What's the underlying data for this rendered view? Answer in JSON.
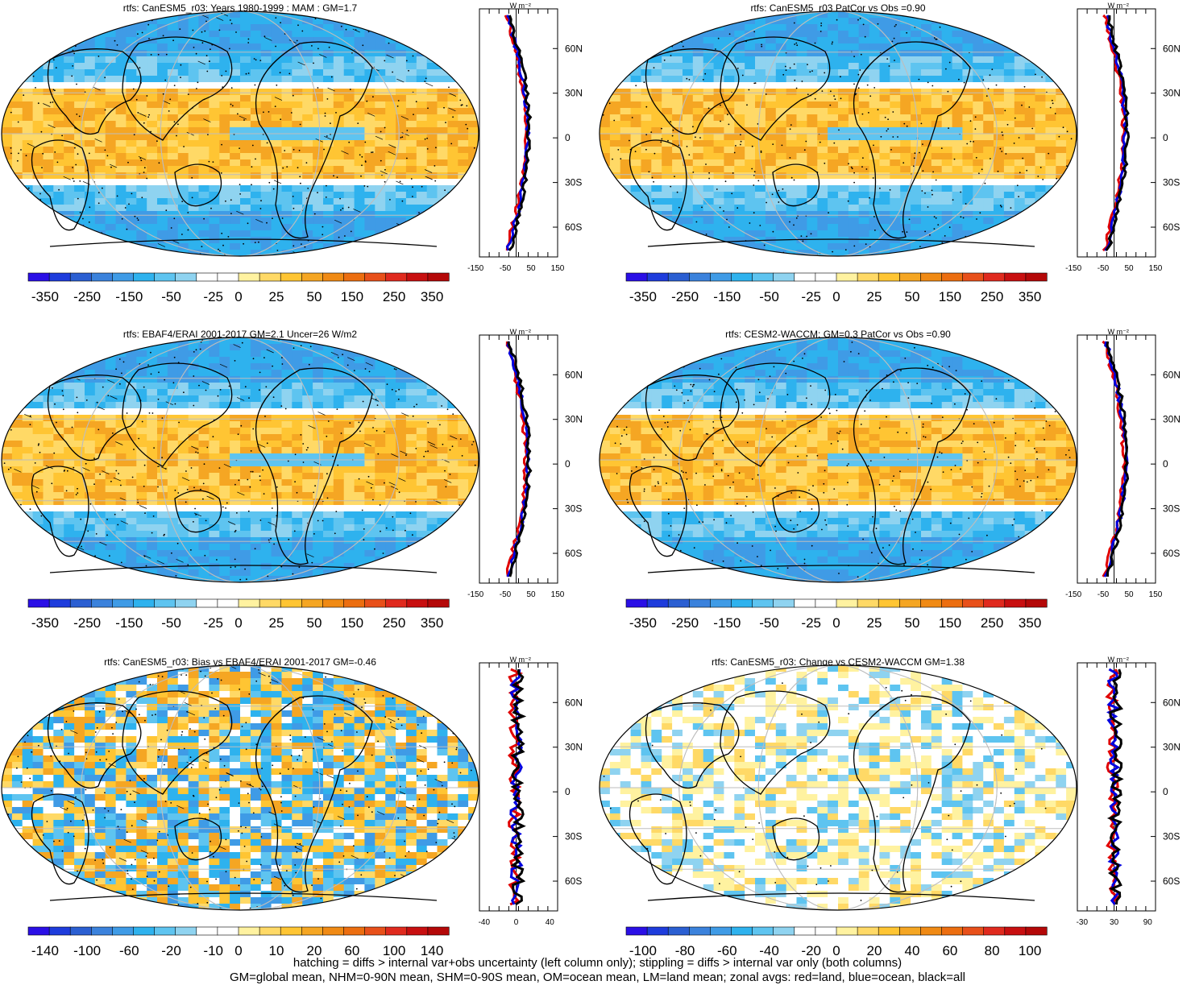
{
  "panels": [
    {
      "id": "p1",
      "title": "rtfs: CanESM5_r03: Years 1980-1999 : MAM : GM=1.7",
      "scale_labels": [
        "-350",
        "-250",
        "-150",
        "-50",
        "-25",
        "0",
        "25",
        "50",
        "150",
        "250",
        "350"
      ],
      "profile_ticks": [
        "-150",
        "-50",
        "50",
        "150"
      ],
      "lat_labels": [
        "60N",
        "30N",
        "0",
        "30S",
        "60S"
      ],
      "units": "W m⁻²",
      "pattern": "sym",
      "hatch": true
    },
    {
      "id": "p2",
      "title": "rtfs: CanESM5_r03 PatCor vs Obs =0.90",
      "scale_labels": [
        "-350",
        "-250",
        "-150",
        "-50",
        "-25",
        "0",
        "25",
        "50",
        "150",
        "250",
        "350"
      ],
      "profile_ticks": [
        "-150",
        "-50",
        "50",
        "150"
      ],
      "lat_labels": [
        "60N",
        "30N",
        "0",
        "30S",
        "60S"
      ],
      "units": "W m⁻²",
      "pattern": "sym",
      "hatch": false
    },
    {
      "id": "p3",
      "title": "rtfs: EBAF4/ERAI 2001-2017 GM=2.1 Uncer=26 W/m2",
      "scale_labels": [
        "-350",
        "-250",
        "-150",
        "-50",
        "-25",
        "0",
        "25",
        "50",
        "150",
        "250",
        "350"
      ],
      "profile_ticks": [
        "-150",
        "-50",
        "50",
        "150"
      ],
      "lat_labels": [
        "60N",
        "30N",
        "0",
        "30S",
        "60S"
      ],
      "units": "W m⁻²",
      "pattern": "sym",
      "hatch": true
    },
    {
      "id": "p4",
      "title": "rtfs: CESM2-WACCM: GM=0.3 PatCor vs Obs =0.90",
      "scale_labels": [
        "-350",
        "-250",
        "-150",
        "-50",
        "-25",
        "0",
        "25",
        "50",
        "150",
        "250",
        "350"
      ],
      "profile_ticks": [
        "-150",
        "-50",
        "50",
        "150"
      ],
      "lat_labels": [
        "60N",
        "30N",
        "0",
        "30S",
        "60S"
      ],
      "units": "W m⁻²",
      "pattern": "sym",
      "hatch": false
    },
    {
      "id": "p5",
      "title": "rtfs: CanESM5_r03: Bias vs EBAF4/ERAI 2001-2017 GM=-0.46",
      "scale_labels": [
        "-140",
        "-100",
        "-60",
        "-20",
        "-10",
        "0",
        "10",
        "20",
        "60",
        "100",
        "140"
      ],
      "profile_ticks": [
        "-40",
        "0",
        "40"
      ],
      "lat_labels": [
        "60N",
        "30N",
        "0",
        "30S",
        "60S"
      ],
      "units": "W m⁻²",
      "pattern": "bias",
      "hatch": true
    },
    {
      "id": "p6",
      "title": "rtfs: CanESM5_r03: Change vs CESM2-WACCM GM=1.38",
      "scale_labels": [
        "-100",
        "-80",
        "-60",
        "-40",
        "-20",
        "0",
        "20",
        "40",
        "60",
        "80",
        "100"
      ],
      "profile_ticks": [
        "-30",
        "30",
        "90"
      ],
      "lat_labels": [
        "60N",
        "30N",
        "0",
        "30S",
        "60S"
      ],
      "units": "W m⁻²",
      "pattern": "change",
      "hatch": false
    }
  ],
  "colorbar_colors": [
    "#2a0fe6",
    "#1e3cdc",
    "#2b5fd2",
    "#3b82dc",
    "#3f9be6",
    "#2eb2ee",
    "#5ec4f0",
    "#8fd3f0",
    "#ffffff",
    "#ffffff",
    "#fff2a0",
    "#ffd966",
    "#ffc533",
    "#f5a623",
    "#f08a14",
    "#ec6e10",
    "#e8501a",
    "#e02a1e",
    "#c80f10",
    "#b40808"
  ],
  "footer_lines": [
    "hatching = diffs > internal var+obs uncertainty (left column only); stippling = diffs > internal var only (both columns)",
    "GM=global mean, NHM=0-90N mean, SHM=0-90S mean, OM=ocean mean, LM=land mean; zonal avgs: red=land, blue=ocean, black=all"
  ]
}
